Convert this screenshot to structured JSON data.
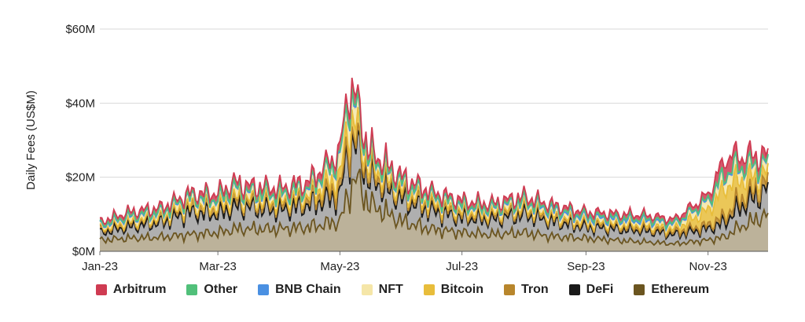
{
  "chart_data": {
    "type": "area",
    "stacked": true,
    "title": "",
    "xlabel": "",
    "ylabel": "Daily Fees (US$M)",
    "ylim": [
      0,
      60
    ],
    "y_ticks": [
      0,
      20,
      40,
      60
    ],
    "y_tick_labels": [
      "$0M",
      "$20M",
      "$40M",
      "$60M"
    ],
    "x_tick_labels": [
      "Jan-23",
      "Mar-23",
      "May-23",
      "Jul-23",
      "Sep-23",
      "Nov-23"
    ],
    "x_tick_dates": [
      "2023-01-01",
      "2023-03-01",
      "2023-05-01",
      "2023-07-01",
      "2023-09-01",
      "2023-11-01"
    ],
    "x_range": [
      "2023-01-01",
      "2023-12-01"
    ],
    "grid": "horizontal",
    "legend_position": "bottom",
    "x": [
      "2023-01-01",
      "2023-01-15",
      "2023-02-01",
      "2023-02-15",
      "2023-03-01",
      "2023-03-10",
      "2023-03-15",
      "2023-04-01",
      "2023-04-15",
      "2023-05-01",
      "2023-05-05",
      "2023-05-09",
      "2023-05-15",
      "2023-06-01",
      "2023-06-15",
      "2023-07-01",
      "2023-07-15",
      "2023-08-01",
      "2023-08-15",
      "2023-09-01",
      "2023-09-15",
      "2023-10-01",
      "2023-10-15",
      "2023-11-01",
      "2023-11-10",
      "2023-11-15",
      "2023-12-01"
    ],
    "series": [
      {
        "name": "Ethereum",
        "color": "#6b5520",
        "values": [
          3,
          3.5,
          3.8,
          4.5,
          5,
          6,
          6,
          6,
          6.5,
          8,
          15,
          20,
          13,
          8,
          6,
          5,
          4.5,
          5,
          4,
          3.5,
          3,
          2.5,
          2,
          3,
          4,
          6,
          10
        ]
      },
      {
        "name": "DeFi",
        "color": "#1a1a1a",
        "values": [
          2,
          3,
          4,
          6,
          5,
          6,
          6,
          5,
          6,
          7,
          12,
          9,
          7,
          6,
          5,
          4,
          4,
          5,
          4,
          3,
          3,
          3,
          2.5,
          3,
          4,
          5,
          7
        ]
      },
      {
        "name": "Tron",
        "color": "#b8862c",
        "values": [
          0.8,
          1,
          1,
          1.5,
          1.5,
          2,
          1.2,
          1.5,
          1.5,
          2,
          2,
          1.5,
          1.5,
          1.3,
          1.2,
          1,
          1,
          1.2,
          1,
          0.8,
          0.8,
          0.7,
          0.7,
          1,
          1.5,
          2,
          2
        ]
      },
      {
        "name": "Bitcoin",
        "color": "#e8bd3b",
        "values": [
          0.3,
          0.3,
          0.3,
          0.4,
          0.5,
          0.5,
          0.8,
          0.8,
          1,
          3,
          5,
          4,
          2,
          1,
          0.8,
          0.8,
          0.6,
          0.6,
          0.5,
          0.5,
          0.5,
          0.8,
          0.8,
          4,
          8,
          6,
          2
        ]
      },
      {
        "name": "NFT",
        "color": "#f5e6a8",
        "values": [
          0.5,
          1,
          1,
          1.5,
          1.5,
          2,
          1.5,
          1.5,
          1.5,
          4,
          6,
          4,
          2,
          1.5,
          1.3,
          1,
          1,
          1,
          1,
          0.8,
          0.8,
          0.8,
          0.8,
          2,
          3,
          3,
          2
        ]
      },
      {
        "name": "BNB Chain",
        "color": "#4a90e2",
        "values": [
          0.3,
          0.4,
          0.4,
          0.4,
          0.4,
          0.4,
          0.4,
          0.4,
          0.4,
          0.6,
          0.6,
          0.6,
          0.5,
          0.4,
          0.4,
          0.4,
          0.4,
          0.5,
          0.5,
          0.5,
          0.5,
          0.5,
          0.5,
          0.5,
          0.6,
          0.5,
          0.5
        ]
      },
      {
        "name": "Other",
        "color": "#51c07a",
        "values": [
          0.3,
          0.3,
          0.3,
          0.3,
          0.3,
          0.3,
          0.3,
          0.3,
          0.3,
          0.4,
          0.4,
          0.4,
          0.3,
          0.3,
          0.3,
          0.3,
          0.3,
          0.3,
          0.5,
          0.5,
          0.5,
          0.5,
          0.3,
          0.3,
          0.3,
          0.3,
          0.3
        ]
      },
      {
        "name": "Arbitrum",
        "color": "#cf3b52",
        "values": [
          0.8,
          1,
          1,
          1,
          1.5,
          1.5,
          1.5,
          1.5,
          1.5,
          2,
          3,
          2.5,
          1.5,
          1.5,
          1.2,
          1.2,
          1,
          1.2,
          1,
          1,
          1,
          1,
          1,
          1.5,
          4,
          3,
          2
        ]
      }
    ],
    "legend_order": [
      "Arbitrum",
      "Other",
      "BNB Chain",
      "NFT",
      "Bitcoin",
      "Tron",
      "DeFi",
      "Ethereum"
    ]
  }
}
